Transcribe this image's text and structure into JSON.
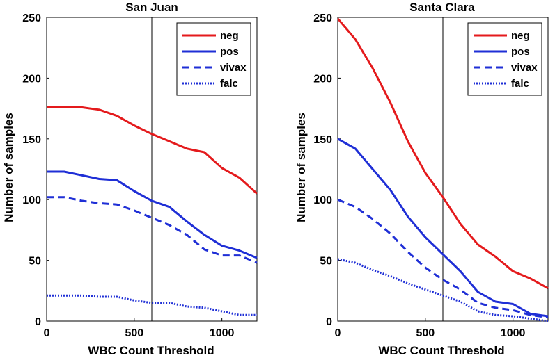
{
  "chart_data": [
    {
      "type": "line",
      "title": "San Juan",
      "xlabel": "WBC Count Threshold",
      "ylabel": "Number of samples",
      "xlim": [
        0,
        1200
      ],
      "ylim": [
        0,
        250
      ],
      "xticks": [
        "0",
        "500",
        "1000"
      ],
      "yticks": [
        "0",
        "50",
        "100",
        "150",
        "200",
        "250"
      ],
      "threshold_x": 600,
      "legend_position": "top-right",
      "x": [
        0,
        100,
        200,
        300,
        400,
        500,
        600,
        700,
        800,
        900,
        1000,
        1100,
        1200
      ],
      "series": [
        {
          "name": "neg",
          "color": "#e41a1c",
          "style": "solid",
          "values": [
            176,
            176,
            176,
            174,
            169,
            161,
            154,
            148,
            142,
            139,
            126,
            118,
            105
          ]
        },
        {
          "name": "pos",
          "color": "#1f2fd6",
          "style": "solid",
          "values": [
            123,
            123,
            120,
            117,
            116,
            107,
            99,
            94,
            82,
            71,
            62,
            58,
            52
          ]
        },
        {
          "name": "vivax",
          "color": "#1f2fd6",
          "style": "dashed",
          "values": [
            102,
            102,
            99,
            97,
            96,
            91,
            85,
            79,
            71,
            59,
            54,
            54,
            48
          ]
        },
        {
          "name": "falc",
          "color": "#1f2fd6",
          "style": "dotted",
          "values": [
            21,
            21,
            21,
            20,
            20,
            17,
            15,
            15,
            12,
            11,
            8,
            5,
            5
          ]
        }
      ]
    },
    {
      "type": "line",
      "title": "Santa Clara",
      "xlabel": "WBC Count Threshold",
      "ylabel": "Number of samples",
      "xlim": [
        0,
        1200
      ],
      "ylim": [
        0,
        250
      ],
      "xticks": [
        "0",
        "500",
        "1000"
      ],
      "yticks": [
        "0",
        "50",
        "100",
        "150",
        "200",
        "250"
      ],
      "threshold_x": 600,
      "legend_position": "top-right",
      "x": [
        0,
        100,
        200,
        300,
        400,
        500,
        600,
        700,
        800,
        900,
        1000,
        1100,
        1200
      ],
      "series": [
        {
          "name": "neg",
          "color": "#e41a1c",
          "style": "solid",
          "values": [
            249,
            232,
            208,
            180,
            148,
            122,
            102,
            80,
            63,
            53,
            41,
            35,
            27
          ]
        },
        {
          "name": "pos",
          "color": "#1f2fd6",
          "style": "solid",
          "values": [
            150,
            142,
            125,
            108,
            86,
            69,
            55,
            41,
            24,
            16,
            14,
            6,
            4
          ]
        },
        {
          "name": "vivax",
          "color": "#1f2fd6",
          "style": "dashed",
          "values": [
            100,
            94,
            84,
            72,
            57,
            44,
            34,
            26,
            15,
            11,
            9,
            5,
            3
          ]
        },
        {
          "name": "falc",
          "color": "#1f2fd6",
          "style": "dotted",
          "values": [
            51,
            48,
            42,
            37,
            31,
            26,
            21,
            16,
            8,
            5,
            4,
            2,
            0
          ]
        }
      ]
    }
  ]
}
